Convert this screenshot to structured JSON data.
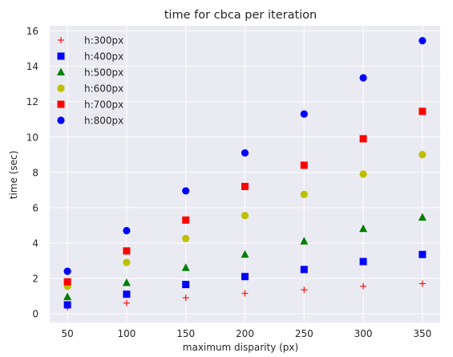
{
  "chart_data": {
    "type": "scatter",
    "title": "time for cbca per iteration",
    "xlabel": "maximum disparity (px)",
    "ylabel": "time (sec)",
    "x": [
      50,
      100,
      150,
      200,
      250,
      300,
      350
    ],
    "xticks": [
      50,
      100,
      150,
      200,
      250,
      300,
      350
    ],
    "yticks": [
      0,
      2,
      4,
      6,
      8,
      10,
      12,
      14,
      16
    ],
    "xlim": [
      35,
      365
    ],
    "ylim": [
      -0.5,
      16.3
    ],
    "grid": true,
    "background": "#eaeaf2",
    "legend_position": "top-left",
    "series": [
      {
        "name": "h:300px",
        "marker": "plus",
        "color": "#ff0000",
        "values": [
          0.35,
          0.6,
          0.9,
          1.15,
          1.35,
          1.55,
          1.7
        ]
      },
      {
        "name": "h:400px",
        "marker": "square",
        "color": "#0000ff",
        "values": [
          0.5,
          1.1,
          1.65,
          2.1,
          2.5,
          2.95,
          3.35
        ]
      },
      {
        "name": "h:500px",
        "marker": "triangle",
        "color": "#008000",
        "values": [
          0.95,
          1.75,
          2.6,
          3.35,
          4.1,
          4.8,
          5.45
        ]
      },
      {
        "name": "h:600px",
        "marker": "circle",
        "color": "#bfbf00",
        "values": [
          1.55,
          2.9,
          4.25,
          5.55,
          6.75,
          7.9,
          9.0
        ]
      },
      {
        "name": "h:700px",
        "marker": "square",
        "color": "#ff0000",
        "values": [
          1.8,
          3.55,
          5.3,
          7.2,
          8.4,
          9.9,
          11.45
        ]
      },
      {
        "name": "h:800px",
        "marker": "circle",
        "color": "#0000ff",
        "values": [
          2.4,
          4.7,
          6.95,
          9.1,
          11.3,
          13.35,
          15.45
        ]
      }
    ]
  }
}
